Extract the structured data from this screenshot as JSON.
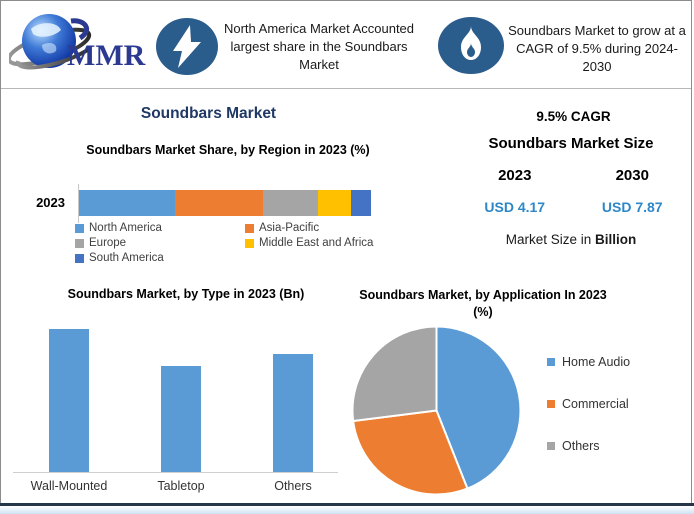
{
  "header": {
    "logo_text": "MMR",
    "badge1": {
      "icon": "lightning-icon",
      "text": "North America Market Accounted largest share in the Soundbars Market"
    },
    "badge2": {
      "icon": "flame-icon",
      "text": "Soundbars Market to grow at a CAGR of 9.5% during 2024-2030"
    }
  },
  "page_title": "Soundbars Market",
  "stats": {
    "cagr": "9.5% CAGR",
    "size_title": "Soundbars Market Size",
    "year_start": "2023",
    "year_end": "2030",
    "value_start": "USD 4.17",
    "value_end": "USD 7.87",
    "note_prefix": "Market Size in ",
    "note_bold": "Billion"
  },
  "chart_data": [
    {
      "type": "bar",
      "variant": "stacked-horizontal",
      "title": "Soundbars Market Share, by Region in 2023 (%)",
      "categories": [
        "2023"
      ],
      "series": [
        {
          "name": "North America",
          "values": [
            33
          ],
          "color": "#5B9BD5"
        },
        {
          "name": "Asia-Pacific",
          "values": [
            30
          ],
          "color": "#ED7D31"
        },
        {
          "name": "Europe",
          "values": [
            19
          ],
          "color": "#A5A5A5"
        },
        {
          "name": "Middle East and Africa",
          "values": [
            11
          ],
          "color": "#FFC000"
        },
        {
          "name": "South America",
          "values": [
            7
          ],
          "color": "#4472C4"
        }
      ],
      "unit": "%",
      "xlim": [
        0,
        100
      ],
      "grid": false,
      "legend_position": "bottom"
    },
    {
      "type": "bar",
      "title": "Soundbars Market, by Type in 2023 (Bn)",
      "categories": [
        "Wall-Mounted",
        "Tabletop",
        "Others"
      ],
      "values": [
        1.62,
        1.21,
        1.34
      ],
      "unit": "Bn",
      "ylim": [
        0,
        1.75
      ],
      "grid": false,
      "color": "#5B9BD5"
    },
    {
      "type": "pie",
      "title": "Soundbars Market, by Application In 2023 (%)",
      "labels": [
        "Home Audio",
        "Commercial",
        "Others"
      ],
      "values": [
        44,
        29,
        27
      ],
      "colors": [
        "#5B9BD5",
        "#ED7D31",
        "#A5A5A5"
      ],
      "unit": "%",
      "legend_position": "right"
    }
  ],
  "colors": {
    "icon_bg": "#2A5C8C",
    "title_navy": "#1F3864",
    "usd_blue": "#2E87C8",
    "logo_navy": "#2B3990"
  }
}
